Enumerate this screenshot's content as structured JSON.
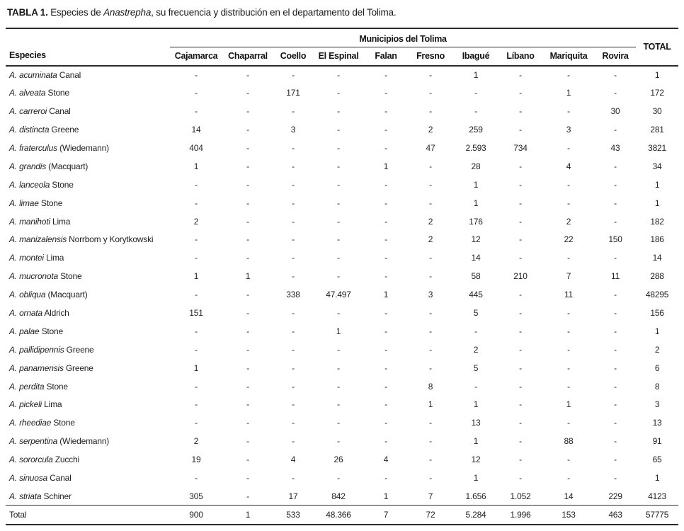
{
  "title": {
    "label": "TABLA 1.",
    "text_before_italic": " Especies de ",
    "italic": "Anastrepha",
    "text_after_italic": ", su frecuencia y distribución en el departamento del Tolima."
  },
  "table": {
    "group_header": "Municipios del Tolima",
    "species_header": "Especies",
    "total_header": "TOTAL",
    "municipalities": [
      "Cajamarca",
      "Chaparral",
      "Coello",
      "El Espinal",
      "Falan",
      "Fresno",
      "Ibagué",
      "Líbano",
      "Mariquita",
      "Rovira"
    ],
    "rows": [
      {
        "species_italic": "A. acuminata",
        "species_author": "Canal",
        "values": [
          "-",
          "-",
          "-",
          "-",
          "-",
          "-",
          "1",
          "-",
          "-",
          "-"
        ],
        "total": "1"
      },
      {
        "species_italic": "A. alveata",
        "species_author": "Stone",
        "values": [
          "-",
          "-",
          "171",
          "-",
          "-",
          "-",
          "-",
          "-",
          "1",
          "-"
        ],
        "total": "172"
      },
      {
        "species_italic": "A. carreroi",
        "species_author": "Canal",
        "values": [
          "-",
          "-",
          "-",
          "-",
          "-",
          "-",
          "-",
          "-",
          "-",
          "30"
        ],
        "total": "30"
      },
      {
        "species_italic": "A. distincta",
        "species_author": "Greene",
        "values": [
          "14",
          "-",
          "3",
          "-",
          "-",
          "2",
          "259",
          "-",
          "3",
          "-"
        ],
        "total": "281"
      },
      {
        "species_italic": "A. fraterculus",
        "species_author": "(Wiedemann)",
        "values": [
          "404",
          "-",
          "-",
          "-",
          "-",
          "47",
          "2.593",
          "734",
          "-",
          "43"
        ],
        "total": "3821"
      },
      {
        "species_italic": "A. grandis",
        "species_author": "(Macquart)",
        "values": [
          "1",
          "-",
          "-",
          "-",
          "1",
          "-",
          "28",
          "-",
          "4",
          "-"
        ],
        "total": "34"
      },
      {
        "species_italic": "A. lanceola",
        "species_author": "Stone",
        "values": [
          "-",
          "-",
          "-",
          "-",
          "-",
          "-",
          "1",
          "-",
          "-",
          "-"
        ],
        "total": "1"
      },
      {
        "species_italic": "A. limae",
        "species_author": "Stone",
        "values": [
          "-",
          "-",
          "-",
          "-",
          "-",
          "-",
          "1",
          "-",
          "-",
          "-"
        ],
        "total": "1"
      },
      {
        "species_italic": "A. manihoti",
        "species_author": "Lima",
        "values": [
          "2",
          "-",
          "-",
          "-",
          "-",
          "2",
          "176",
          "-",
          "2",
          "-"
        ],
        "total": "182"
      },
      {
        "species_italic": "A. manizalensis",
        "species_author": "Norrbom y Korytkowski",
        "values": [
          "-",
          "-",
          "-",
          "-",
          "-",
          "2",
          "12",
          "-",
          "22",
          "150"
        ],
        "total": "186"
      },
      {
        "species_italic": "A. montei",
        "species_author": "Lima",
        "values": [
          "-",
          "-",
          "-",
          "-",
          "-",
          "-",
          "14",
          "-",
          "-",
          "-"
        ],
        "total": "14"
      },
      {
        "species_italic": "A. mucronota",
        "species_author": "Stone",
        "values": [
          "1",
          "1",
          "-",
          "-",
          "-",
          "-",
          "58",
          "210",
          "7",
          "11"
        ],
        "total": "288"
      },
      {
        "species_italic": "A. obliqua",
        "species_author": "(Macquart)",
        "values": [
          "-",
          "-",
          "338",
          "47.497",
          "1",
          "3",
          "445",
          "-",
          "11",
          "-"
        ],
        "total": "48295"
      },
      {
        "species_italic": "A. ornata",
        "species_author": "Aldrich",
        "values": [
          "151",
          "-",
          "-",
          "-",
          "-",
          "-",
          "5",
          "-",
          "-",
          "-"
        ],
        "total": "156"
      },
      {
        "species_italic": "A. palae",
        "species_author": "Stone",
        "values": [
          "-",
          "-",
          "-",
          "1",
          "-",
          "-",
          "-",
          "-",
          "-",
          "-"
        ],
        "total": "1"
      },
      {
        "species_italic": "A. pallidipennis",
        "species_author": "Greene",
        "values": [
          "-",
          "-",
          "-",
          "-",
          "-",
          "-",
          "2",
          "-",
          "-",
          "-"
        ],
        "total": "2"
      },
      {
        "species_italic": "A. panamensis",
        "species_author": "Greene",
        "values": [
          "1",
          "-",
          "-",
          "-",
          "-",
          "-",
          "5",
          "-",
          "-",
          "-"
        ],
        "total": "6"
      },
      {
        "species_italic": "A. perdita",
        "species_author": "Stone",
        "values": [
          "-",
          "-",
          "-",
          "-",
          "-",
          "8",
          "-",
          "-",
          "-",
          "-"
        ],
        "total": "8"
      },
      {
        "species_italic": "A. pickeli",
        "species_author": "Lima",
        "values": [
          "-",
          "-",
          "-",
          "-",
          "-",
          "1",
          "1",
          "-",
          "1",
          "-"
        ],
        "total": "3"
      },
      {
        "species_italic": "A. rheediae",
        "species_author": "Stone",
        "values": [
          "-",
          "-",
          "-",
          "-",
          "-",
          "-",
          "13",
          "-",
          "-",
          "-"
        ],
        "total": "13"
      },
      {
        "species_italic": "A. serpentina",
        "species_author": "(Wiedemann)",
        "values": [
          "2",
          "-",
          "-",
          "-",
          "-",
          "-",
          "1",
          "-",
          "88",
          "-"
        ],
        "total": "91"
      },
      {
        "species_italic": "A. sororcula",
        "species_author": "Zucchi",
        "values": [
          "19",
          "-",
          "4",
          "26",
          "4",
          "-",
          "12",
          "-",
          "-",
          "-"
        ],
        "total": "65"
      },
      {
        "species_italic": "A. sinuosa",
        "species_author": "Canal",
        "values": [
          "-",
          "-",
          "-",
          "-",
          "-",
          "-",
          "1",
          "-",
          "-",
          "-"
        ],
        "total": "1"
      },
      {
        "species_italic": "A. striata",
        "species_author": "Schiner",
        "values": [
          "305",
          "-",
          "17",
          "842",
          "1",
          "7",
          "1.656",
          "1.052",
          "14",
          "229"
        ],
        "total": "4123"
      }
    ],
    "total_row": {
      "label": "Total",
      "values": [
        "900",
        "1",
        "533",
        "48.366",
        "7",
        "72",
        "5.284",
        "1.996",
        "153",
        "463"
      ],
      "total": "57775"
    }
  }
}
